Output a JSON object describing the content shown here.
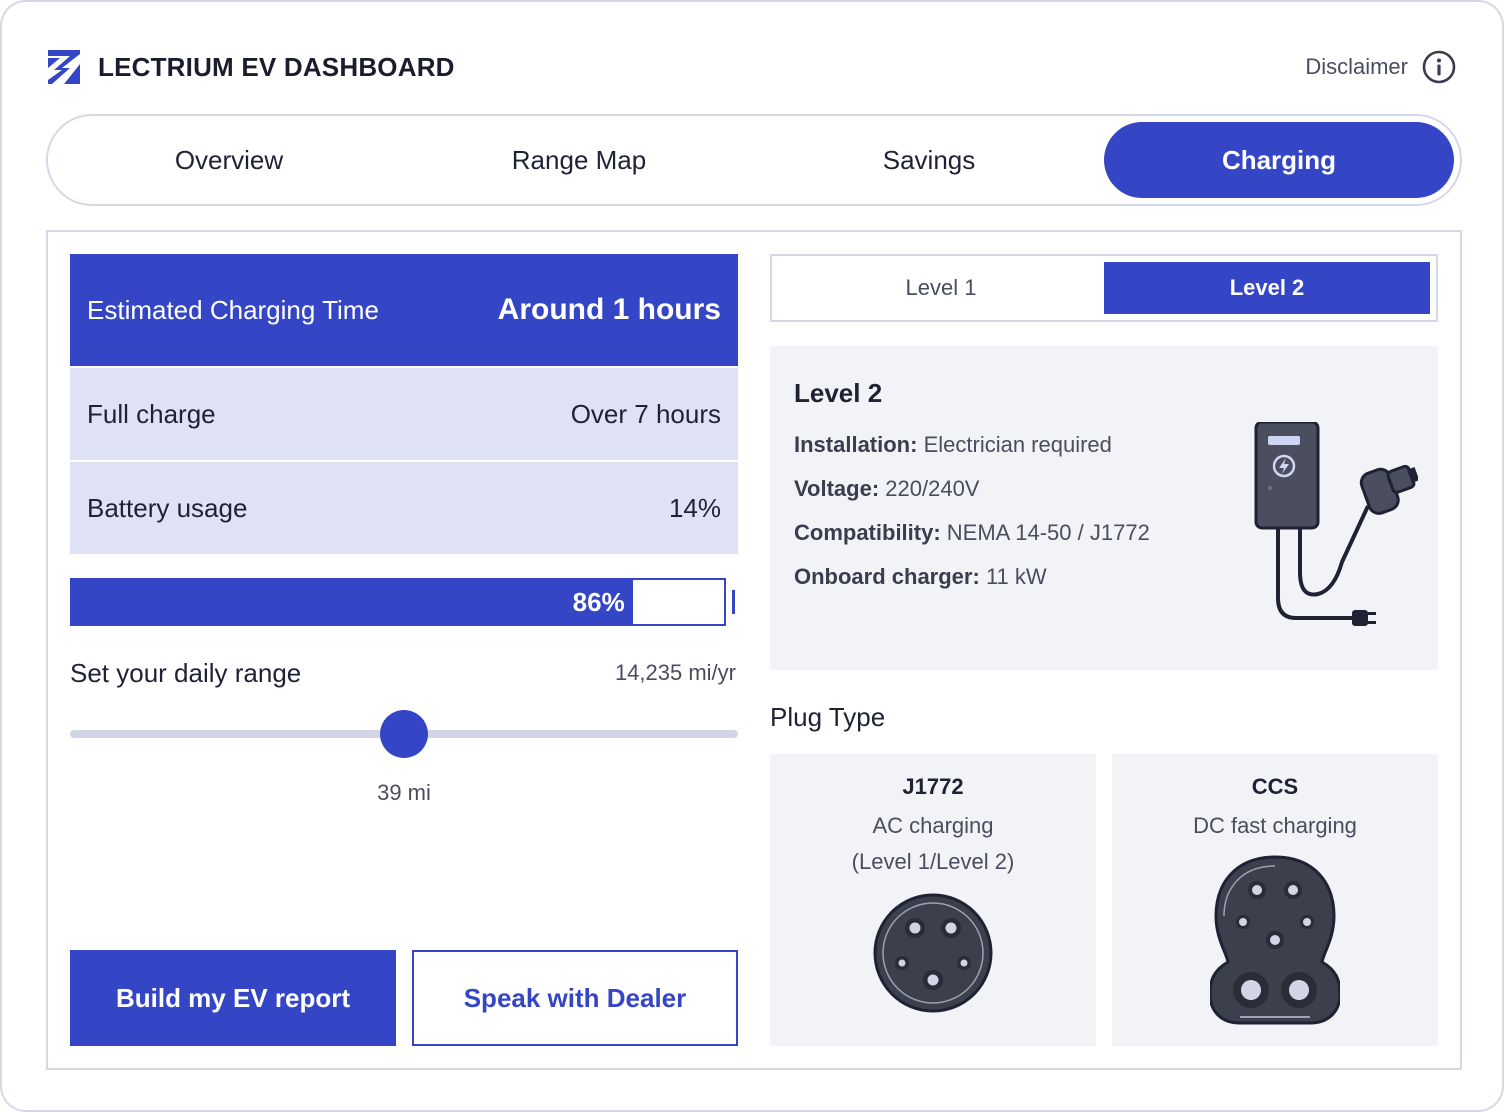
{
  "header": {
    "title": "LECTRIUM EV DASHBOARD",
    "logo_icon": "lightning-logo-icon",
    "disclaimer_label": "Disclaimer",
    "disclaimer_icon": "info-icon"
  },
  "tabs": [
    {
      "label": "Overview",
      "active": false
    },
    {
      "label": "Range Map",
      "active": false
    },
    {
      "label": "Savings",
      "active": false
    },
    {
      "label": "Charging",
      "active": true
    }
  ],
  "charging_time": {
    "label": "Estimated Charging Time",
    "value": "Around 1 hours"
  },
  "stats": [
    {
      "label": "Full charge",
      "value": "Over 7 hours"
    },
    {
      "label": "Battery usage",
      "value": "14%"
    }
  ],
  "battery": {
    "fill_percent": 86,
    "label": "86%"
  },
  "daily_range": {
    "title": "Set your daily range",
    "annual": "14,235 mi/yr",
    "value_label": "39 mi",
    "slider_fraction": 0.5
  },
  "actions": {
    "primary_label": "Build my EV report",
    "secondary_label": "Speak with Dealer"
  },
  "levels": [
    {
      "label": "Level 1",
      "active": false
    },
    {
      "label": "Level 2",
      "active": true
    }
  ],
  "level_info": {
    "title": "Level 2",
    "specs": [
      {
        "key": "Installation:",
        "value": "Electrician required"
      },
      {
        "key": "Voltage:",
        "value": "220/240V"
      },
      {
        "key": "Compatibility:",
        "value": "NEMA 14-50 / J1772"
      },
      {
        "key": "Onboard charger:",
        "value": "11 kW"
      }
    ],
    "illustration": "wall-charger-icon"
  },
  "plug_type": {
    "heading": "Plug Type",
    "plugs": [
      {
        "name": "J1772",
        "desc_line1": "AC charging",
        "desc_line2": "(Level 1/Level 2)",
        "icon": "j1772-plug-icon"
      },
      {
        "name": "CCS",
        "desc_line1": "DC fast charging",
        "desc_line2": "",
        "icon": "ccs-plug-icon"
      }
    ]
  },
  "colors": {
    "accent": "#3446c5",
    "row_bg": "#dfe2f5",
    "card_bg": "#f2f3f7",
    "border": "#d6d8e6"
  }
}
